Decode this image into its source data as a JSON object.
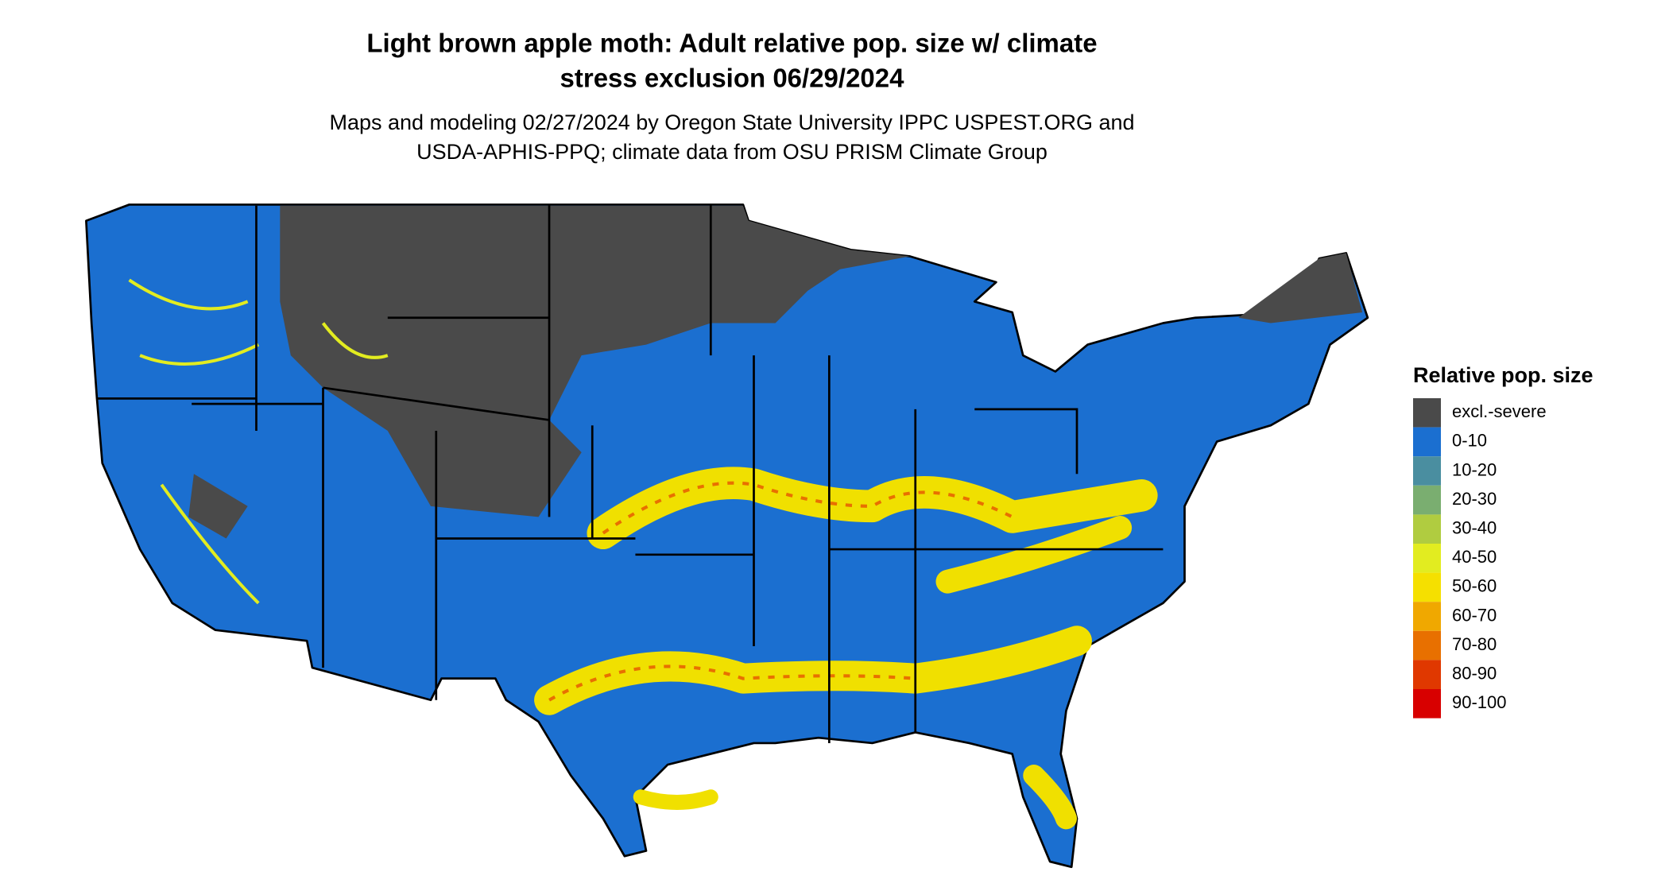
{
  "title": [
    "Light brown apple moth: Adult relative pop. size w/ climate",
    "stress exclusion 06/29/2024"
  ],
  "subtitle": [
    "Maps and modeling 02/27/2024 by Oregon State University IPPC USPEST.ORG and",
    "USDA-APHIS-PPQ; climate data from OSU PRISM Climate Group"
  ],
  "legend": {
    "title": "Relative pop. size",
    "items": [
      {
        "label": "excl.-severe",
        "color": "#4a4a4a"
      },
      {
        "label": "0-10",
        "color": "#1b6fd0"
      },
      {
        "label": "10-20",
        "color": "#4a8ea0"
      },
      {
        "label": "20-30",
        "color": "#7aae70"
      },
      {
        "label": "30-40",
        "color": "#b0cc40"
      },
      {
        "label": "40-50",
        "color": "#e2ec20"
      },
      {
        "label": "50-60",
        "color": "#f5e000"
      },
      {
        "label": "60-70",
        "color": "#f0a800"
      },
      {
        "label": "70-80",
        "color": "#e87000"
      },
      {
        "label": "80-90",
        "color": "#e03800"
      },
      {
        "label": "90-100",
        "color": "#d80000"
      }
    ]
  }
}
